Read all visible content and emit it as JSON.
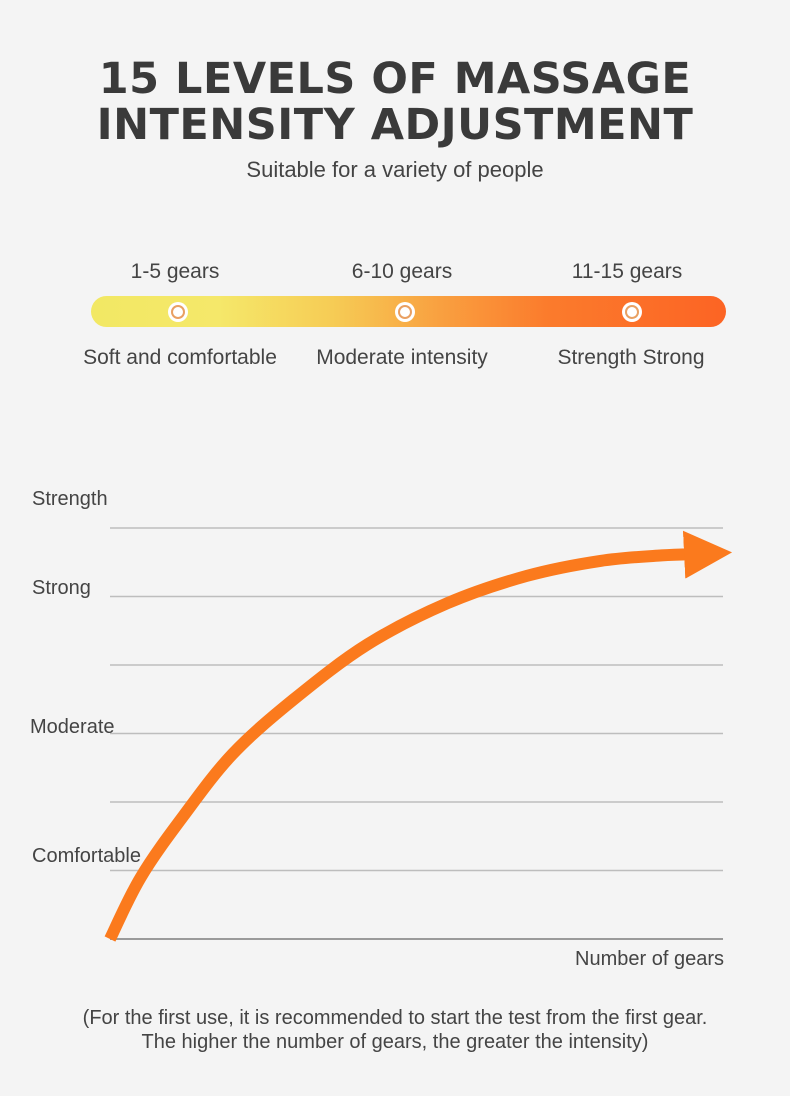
{
  "header": {
    "title_line1": "15 LEVELS OF MASSAGE",
    "title_line2": "INTENSITY ADJUSTMENT",
    "subtitle": "Suitable for a variety of people"
  },
  "gear_bar": {
    "segments": [
      {
        "label": "1-5 gears",
        "description": "Soft and comfortable"
      },
      {
        "label": "6-10 gears",
        "description": "Moderate intensity"
      },
      {
        "label": "11-15 gears",
        "description": "Strength Strong"
      }
    ],
    "colors": {
      "start": "#f2e864",
      "end": "#fc6424"
    }
  },
  "chart_data": {
    "type": "line",
    "title": "",
    "xlabel": "Number of gears",
    "ylabel": "",
    "y_levels": [
      "Comfortable",
      "Moderate",
      "Strong",
      "Strength"
    ],
    "grid": true,
    "curve_color": "#fb7a1d",
    "series": [
      {
        "points": [
          [
            0,
            0.0
          ],
          [
            0.05,
            0.9
          ],
          [
            0.12,
            1.8
          ],
          [
            0.2,
            2.7
          ],
          [
            0.3,
            3.5
          ],
          [
            0.42,
            4.3
          ],
          [
            0.55,
            4.9
          ],
          [
            0.68,
            5.3
          ],
          [
            0.8,
            5.52
          ],
          [
            0.9,
            5.6
          ],
          [
            0.96,
            5.62
          ]
        ]
      }
    ],
    "xlim": [
      0,
      1
    ],
    "ylim": [
      0,
      6
    ]
  },
  "footnote": {
    "line1": "(For the first use, it is recommended to start the test from the first gear.",
    "line2": "The higher the number of gears, the greater the intensity)"
  }
}
